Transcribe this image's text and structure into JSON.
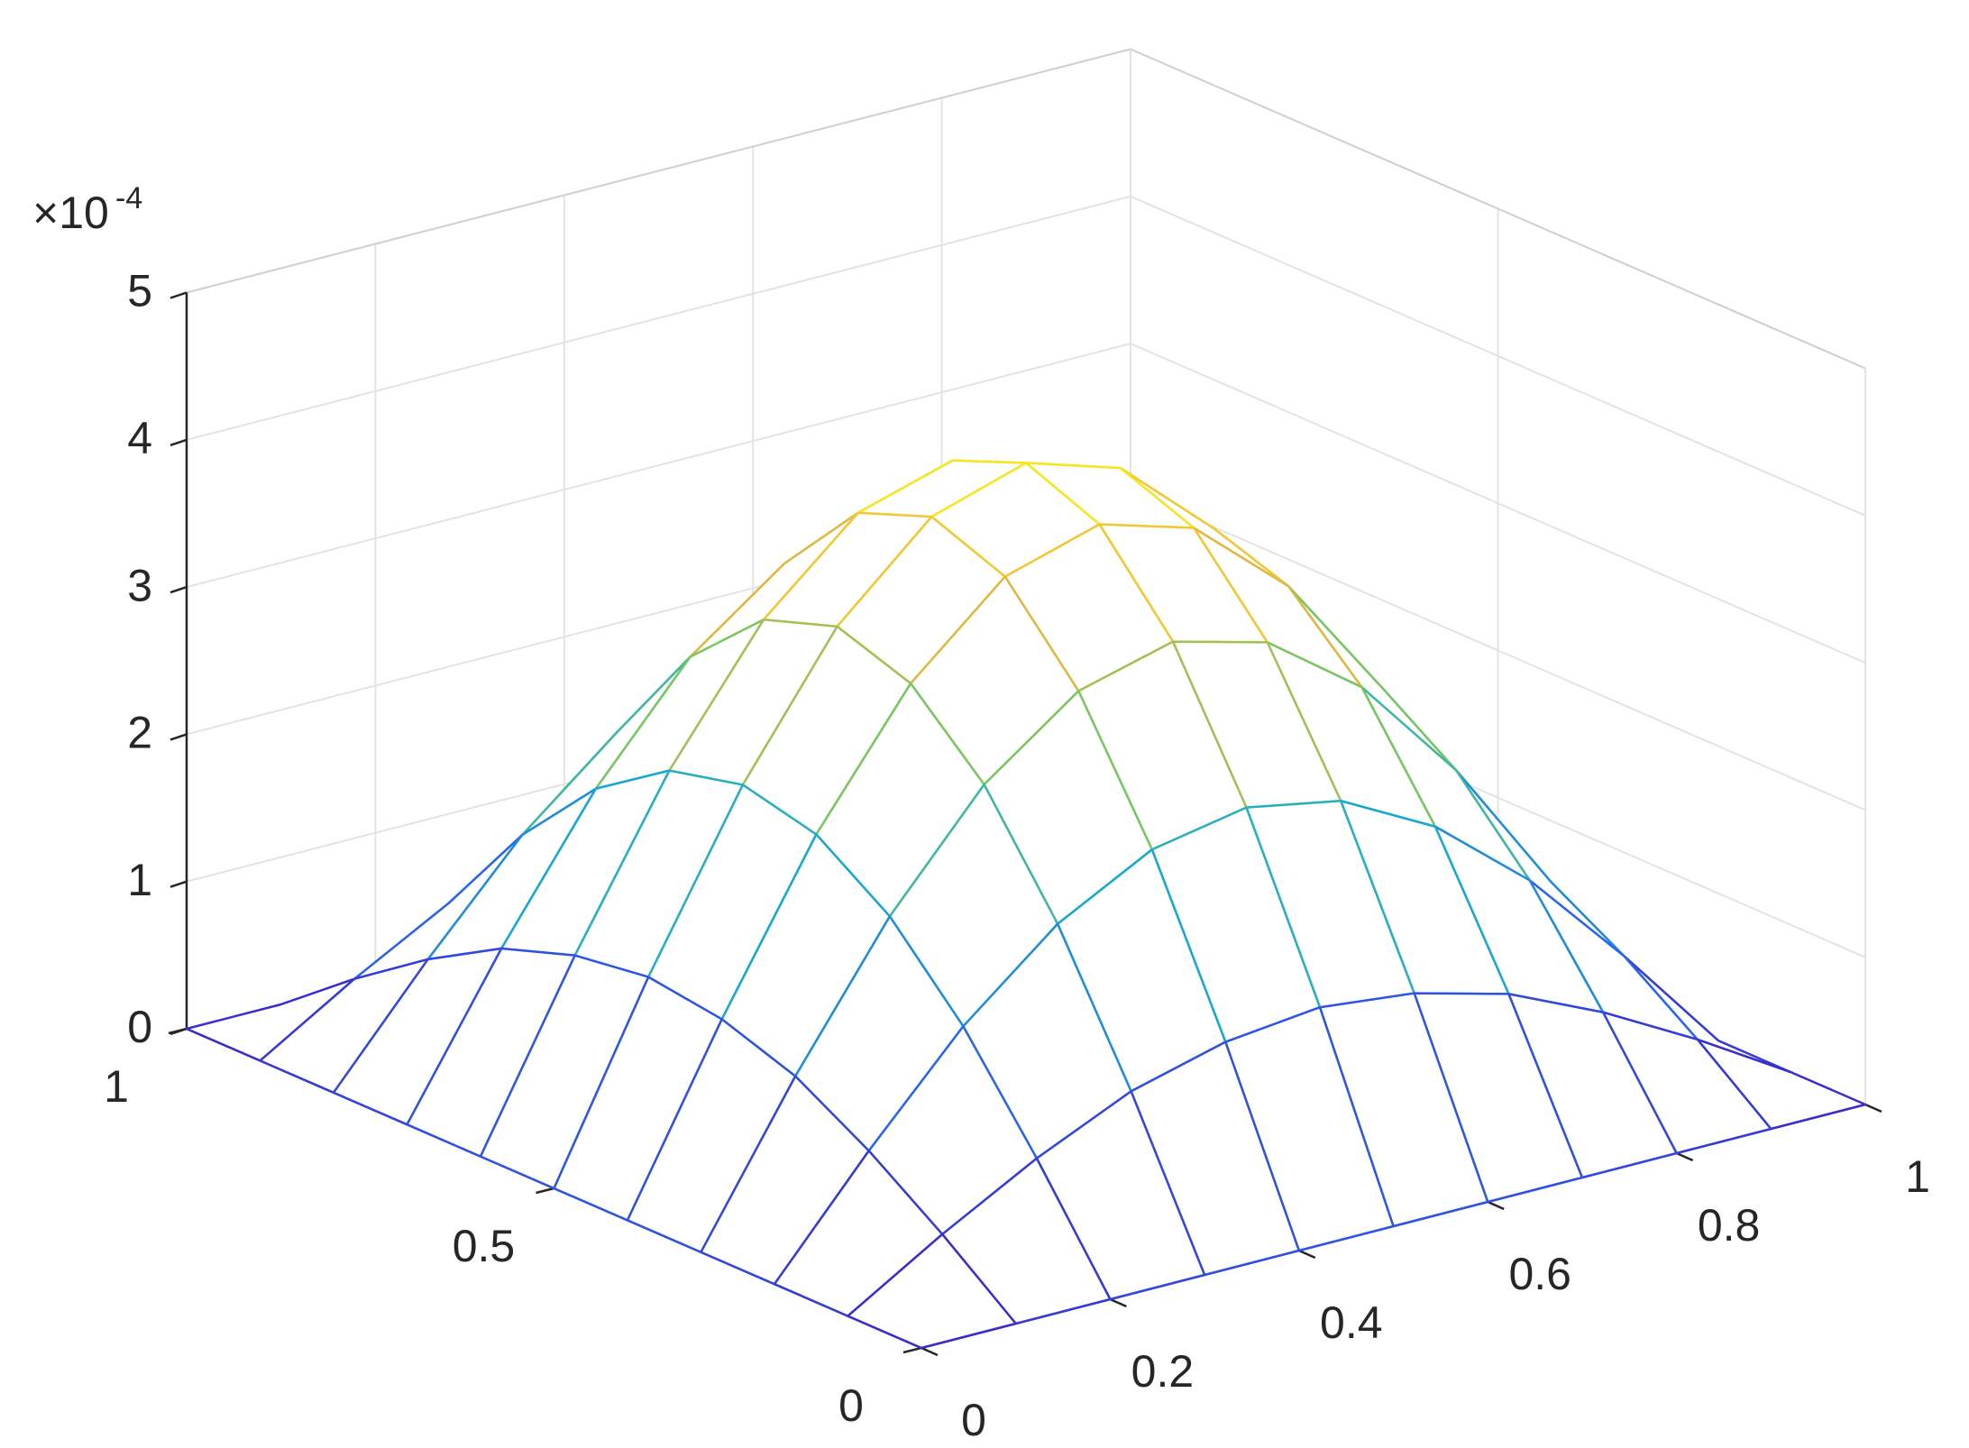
{
  "chart_data": {
    "type": "mesh3d",
    "x": [
      0,
      0.1,
      0.2,
      0.3,
      0.4,
      0.5,
      0.6,
      0.7,
      0.8,
      0.9,
      1
    ],
    "y": [
      0,
      0.1,
      0.2,
      0.3,
      0.4,
      0.5,
      0.6,
      0.7,
      0.8,
      0.9,
      1
    ],
    "z": [
      [
        0,
        0,
        0,
        0,
        0,
        0,
        0,
        0,
        0,
        0,
        0
      ],
      [
        0,
        0.39,
        0.74,
        1.03,
        1.2,
        1.27,
        1.2,
        1.03,
        0.74,
        0.39,
        0
      ],
      [
        0,
        0.74,
        1.42,
        1.95,
        2.29,
        2.41,
        2.29,
        1.95,
        1.42,
        0.74,
        0
      ],
      [
        0,
        1.03,
        1.95,
        2.68,
        3.15,
        3.32,
        3.15,
        2.68,
        1.95,
        1.03,
        0
      ],
      [
        0,
        1.2,
        2.29,
        3.15,
        3.71,
        3.9,
        3.71,
        3.15,
        2.29,
        1.2,
        0
      ],
      [
        0,
        1.27,
        2.41,
        3.32,
        3.9,
        4.1,
        3.9,
        3.32,
        2.41,
        1.27,
        0
      ],
      [
        0,
        1.2,
        2.29,
        3.15,
        3.71,
        3.9,
        3.71,
        3.15,
        2.29,
        1.2,
        0
      ],
      [
        0,
        1.03,
        1.95,
        2.68,
        3.15,
        3.32,
        3.15,
        2.68,
        1.95,
        1.03,
        0
      ],
      [
        0,
        0.74,
        1.42,
        1.95,
        2.29,
        2.41,
        2.29,
        1.95,
        1.42,
        0.74,
        0
      ],
      [
        0,
        0.39,
        0.74,
        1.03,
        1.2,
        1.27,
        1.2,
        1.03,
        0.74,
        0.39,
        0
      ],
      [
        0,
        0,
        0,
        0,
        0,
        0,
        0,
        0,
        0,
        0,
        0
      ]
    ],
    "xlim": [
      0,
      1
    ],
    "ylim": [
      0,
      1
    ],
    "zlim": [
      0,
      5
    ],
    "xticks": [
      0,
      0.2,
      0.4,
      0.6,
      0.8,
      1
    ],
    "yticks": [
      0,
      0.5,
      1
    ],
    "zticks": [
      0,
      1,
      2,
      3,
      4,
      5
    ],
    "z_scale_label": "×10",
    "z_scale_exponent": "-4",
    "grid": true
  }
}
